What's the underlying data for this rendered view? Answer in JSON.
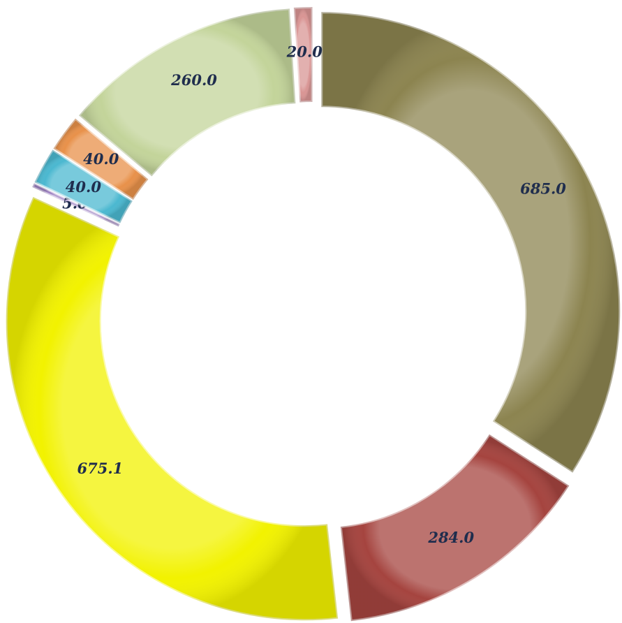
{
  "chart_data": {
    "type": "donut",
    "values": [
      685,
      284,
      675.1,
      5,
      40,
      40,
      260,
      20
    ],
    "value_labels": [
      "685.0",
      "284.0",
      "675.1",
      "5.0",
      "40.0",
      "40.0",
      "260.0",
      "20.0"
    ],
    "colors": [
      "#8c8450",
      "#a5443f",
      "#f2f200",
      "#9b7fc0",
      "#4bb8d0",
      "#e8914a",
      "#c3d49a",
      "#d99594"
    ]
  }
}
